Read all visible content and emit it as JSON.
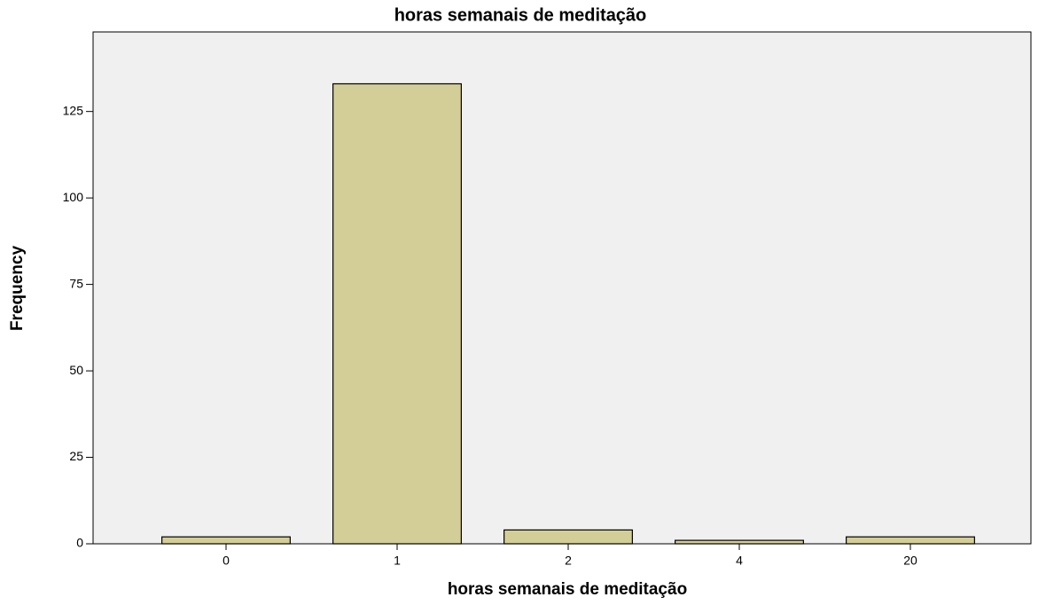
{
  "chart_data": {
    "type": "bar",
    "title": "horas semanais de meditação",
    "x_label": "horas semanais de meditação",
    "y_label": "Frequency",
    "categories": [
      "0",
      "1",
      "2",
      "4",
      "20"
    ],
    "values": [
      2,
      133,
      4,
      1,
      2
    ],
    "color": "#d3ce97",
    "ylim": [
      0,
      148
    ],
    "yticks": [
      0,
      25,
      50,
      75,
      100,
      125
    ],
    "grid": false
  }
}
